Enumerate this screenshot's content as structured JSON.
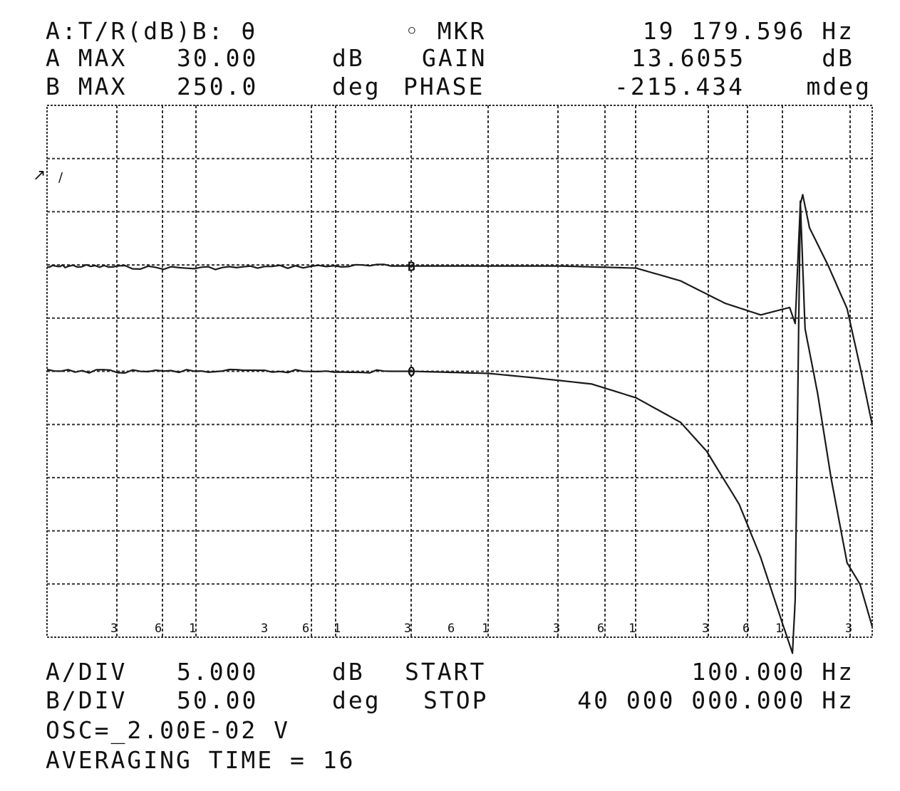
{
  "header": {
    "line1": {
      "mode": "A:T/R(dB)B: θ",
      "marker": "◦ MKR",
      "freq": "19 179.596 Hz"
    },
    "line2": {
      "label": "A MAX",
      "value": "30.00",
      "unit": "dB",
      "name": "GAIN",
      "reading": "13.6055",
      "reading_unit": "dB"
    },
    "line3": {
      "label": "B MAX",
      "value": "250.0",
      "unit": "deg",
      "name": "PHASE",
      "reading": "-215.434",
      "reading_unit": "mdeg"
    }
  },
  "footer": {
    "line1": {
      "label": "A/DIV",
      "value": "5.000",
      "unit": "dB",
      "name": "START",
      "freq": "100.000 Hz"
    },
    "line2": {
      "label": "B/DIV",
      "value": "50.00",
      "unit": "deg",
      "name": "STOP",
      "freq": "40 000 000.000 Hz"
    },
    "line3": "OSC=_2.00E-02 V",
    "line4": "AVERAGING TIME = 16"
  },
  "chart_data": {
    "type": "line",
    "x_scale": "log",
    "xlim_hz": [
      100,
      40000000
    ],
    "x_tick_labels": [
      "3",
      "6",
      "1",
      "3",
      "6",
      "1",
      "3",
      "6",
      "1",
      "3",
      "6",
      "1",
      "3",
      "6",
      "1",
      "3"
    ],
    "grid": true,
    "grid_divisions": {
      "x": 16,
      "y": 10
    },
    "colors": {
      "trace": "#1a1a1a",
      "grid": "#333333",
      "background": "#ffffff"
    },
    "series": [
      {
        "name": "A",
        "channel_marker": "B",
        "ylim_db": [
          -20,
          30
        ],
        "points": [
          [
            100,
            14.8
          ],
          [
            150,
            14.9
          ],
          [
            300,
            14.8
          ],
          [
            1000,
            14.7
          ],
          [
            3000,
            14.8
          ],
          [
            10000,
            14.9
          ],
          [
            30000,
            14.9
          ],
          [
            100000,
            14.9
          ],
          [
            300000,
            14.9
          ],
          [
            1000000,
            14.7
          ],
          [
            2000000,
            13.5
          ],
          [
            4000000,
            11.4
          ],
          [
            7000000,
            10.3
          ],
          [
            11000000,
            11.0
          ],
          [
            12000000,
            9.5
          ],
          [
            13000000,
            20.7
          ],
          [
            13500000,
            21.6
          ],
          [
            15000000,
            18.5
          ],
          [
            20000000,
            15.0
          ],
          [
            27000000,
            10.9
          ],
          [
            33000000,
            5.5
          ],
          [
            40000000,
            0.0
          ]
        ]
      },
      {
        "name": "B",
        "channel_marker": "θ",
        "ylim_deg": [
          -250,
          250
        ],
        "points": [
          [
            100,
            0
          ],
          [
            300,
            0
          ],
          [
            1000,
            0
          ],
          [
            3000,
            0
          ],
          [
            10000,
            0
          ],
          [
            30000,
            0
          ],
          [
            100000,
            -2
          ],
          [
            200000,
            -6
          ],
          [
            500000,
            -12
          ],
          [
            1000000,
            -25
          ],
          [
            2000000,
            -48
          ],
          [
            3000000,
            -75
          ],
          [
            5000000,
            -125
          ],
          [
            7000000,
            -175
          ],
          [
            10000000,
            -240
          ],
          [
            11500000,
            -265
          ],
          [
            12000000,
            -215
          ],
          [
            13000000,
            160
          ],
          [
            14000000,
            40
          ],
          [
            17000000,
            -20
          ],
          [
            21000000,
            -100
          ],
          [
            27000000,
            -180
          ],
          [
            33000000,
            -200
          ],
          [
            40000000,
            -240
          ]
        ]
      }
    ]
  }
}
